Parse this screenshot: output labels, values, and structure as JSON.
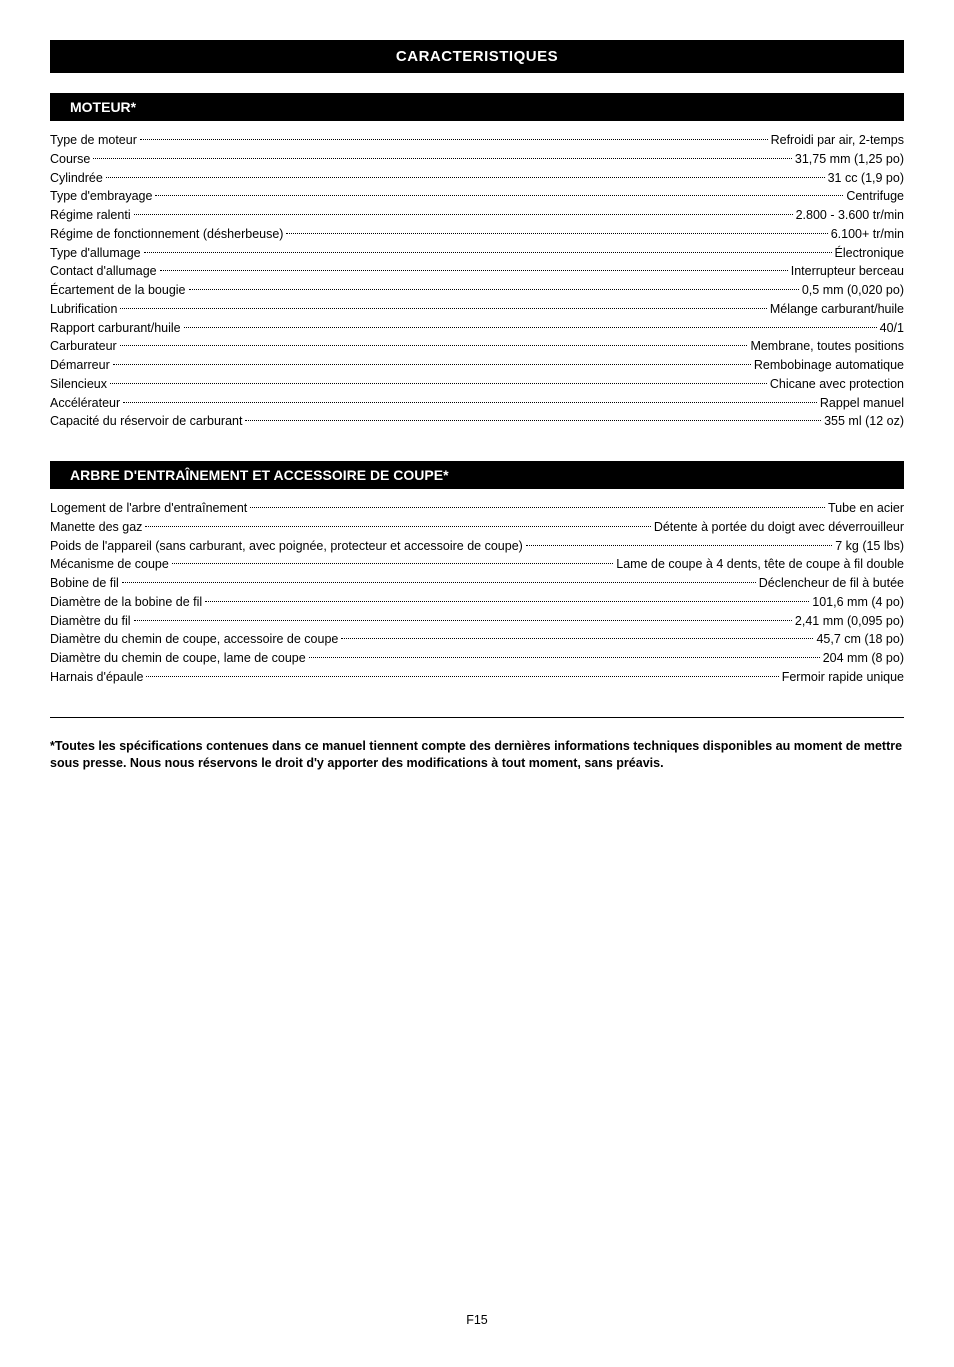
{
  "page_title": "CARACTERISTIQUES",
  "sections": [
    {
      "header": "MOTEUR*",
      "specs": [
        {
          "label": "Type de moteur",
          "value": "Refroidi par air, 2-temps"
        },
        {
          "label": "Course",
          "value": "31,75 mm (1,25 po)"
        },
        {
          "label": "Cylindrée",
          "value": "31 cc (1,9 po)"
        },
        {
          "label": "Type d'embrayage",
          "value": "Centrifuge"
        },
        {
          "label": "Régime ralenti",
          "value": "2.800 - 3.600 tr/min"
        },
        {
          "label": "Régime de fonctionnement (désherbeuse)",
          "value": "6.100+ tr/min"
        },
        {
          "label": "Type d'allumage",
          "value": "Électronique"
        },
        {
          "label": "Contact d'allumage",
          "value": "Interrupteur berceau"
        },
        {
          "label": "Écartement de la bougie",
          "value": "0,5 mm (0,020 po)"
        },
        {
          "label": "Lubrification",
          "value": "Mélange carburant/huile"
        },
        {
          "label": "Rapport carburant/huile",
          "value": "40/1"
        },
        {
          "label": "Carburateur",
          "value": "Membrane, toutes positions"
        },
        {
          "label": "Démarreur",
          "value": "Rembobinage automatique"
        },
        {
          "label": "Silencieux",
          "value": "Chicane avec protection"
        },
        {
          "label": "Accélérateur",
          "value": "Rappel manuel"
        },
        {
          "label": "Capacité du réservoir de carburant",
          "value": "355 ml (12 oz)"
        }
      ]
    },
    {
      "header": "ARBRE D'ENTRAÎNEMENT ET ACCESSOIRE DE COUPE*",
      "specs": [
        {
          "label": "Logement de l'arbre d'entraînement",
          "value": "Tube en acier"
        },
        {
          "label": "Manette des gaz",
          "value": "Détente à portée du doigt avec déverrouilleur"
        },
        {
          "label": "Poids de l'appareil (sans carburant, avec poignée, protecteur et accessoire de coupe)",
          "value": "7 kg (15 lbs)"
        },
        {
          "label": "Mécanisme de coupe",
          "value": "Lame de coupe à 4 dents, tête de coupe à fil double"
        },
        {
          "label": "Bobine de fil",
          "value": "Déclencheur de fil à butée"
        },
        {
          "label": "Diamètre de la bobine de fil",
          "value": "101,6 mm (4 po)"
        },
        {
          "label": "Diamètre du fil",
          "value": "2,41 mm (0,095 po)"
        },
        {
          "label": "Diamètre du chemin de coupe, accessoire de coupe",
          "value": "45,7 cm (18 po)"
        },
        {
          "label": "Diamètre du chemin de coupe, lame de coupe",
          "value": "204 mm (8 po)"
        },
        {
          "label": "Harnais d'épaule",
          "value": "Fermoir rapide unique"
        }
      ]
    }
  ],
  "footnote": "*Toutes les spécifications contenues dans ce manuel tiennent compte des dernières informations techniques disponibles au moment de mettre sous presse. Nous nous réservons le droit d'y apporter des modifications à tout moment, sans préavis.",
  "page_number": "F15",
  "colors": {
    "background": "#ffffff",
    "text": "#000000",
    "header_bg": "#000000",
    "header_text": "#ffffff"
  },
  "typography": {
    "body_fontsize": 12.5,
    "title_fontsize": 15,
    "section_header_fontsize": 14,
    "font_family": "Arial, Helvetica, sans-serif"
  }
}
